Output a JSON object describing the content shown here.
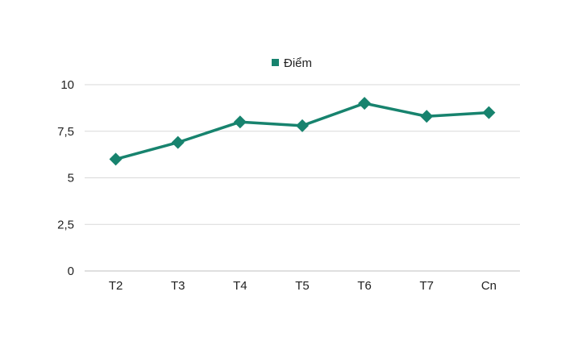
{
  "chart_data": {
    "type": "line",
    "categories": [
      "T2",
      "T3",
      "T4",
      "T5",
      "T6",
      "T7",
      "Cn"
    ],
    "series": [
      {
        "name": "Điểm",
        "values": [
          6,
          6.9,
          8,
          7.8,
          9,
          8.3,
          8.5
        ]
      }
    ],
    "y_ticks": [
      "0",
      "2,5",
      "5",
      "7,5",
      "10"
    ],
    "ylim": [
      0,
      10
    ],
    "grid": true,
    "legend": "top-center",
    "marker": "diamond",
    "colors": {
      "series": "#17836e",
      "grid": "#d9d9d9"
    }
  }
}
